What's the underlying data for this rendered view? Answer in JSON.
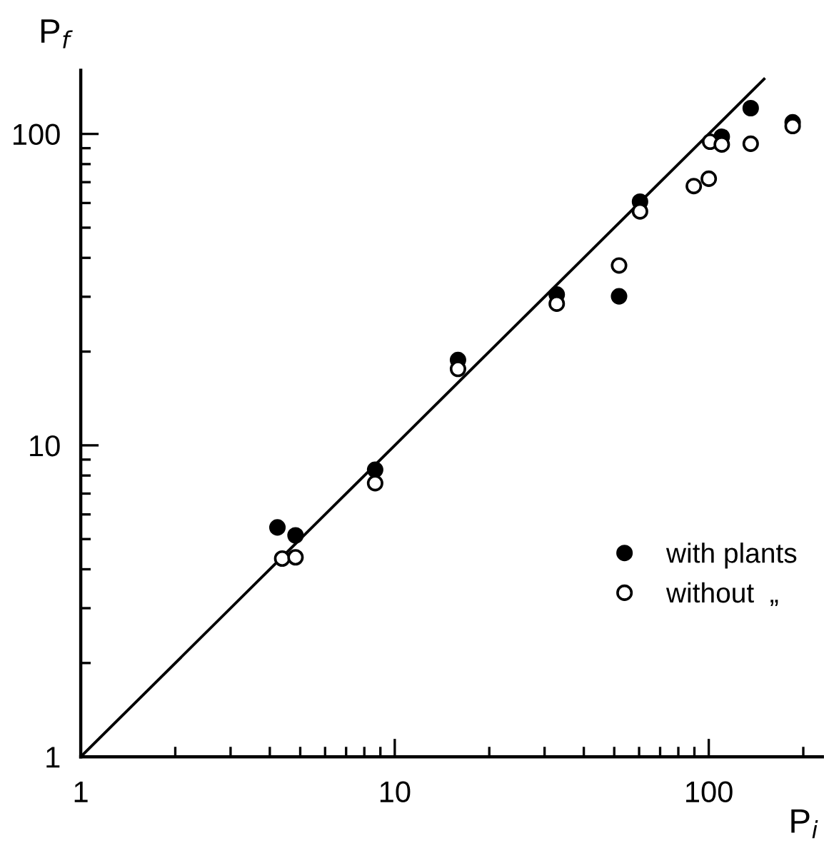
{
  "chart_data": {
    "type": "scatter",
    "xlabel": "P$_{i}$",
    "ylabel": "P$_{f}$",
    "log": "xy",
    "xlim": [
      1,
      230
    ],
    "ylim": [
      1,
      160
    ],
    "xticks": [
      1,
      10,
      100
    ],
    "yticks": [
      1,
      10,
      100
    ],
    "grid": false,
    "legend": "bottom right",
    "marker": "circle",
    "series": [
      {
        "name": "with plants",
        "color": "#000000",
        "x": [
          4.23,
          4.83,
          8.66,
          15.9,
          32.8,
          51.8,
          60.4,
          110,
          136,
          185
        ],
        "values": [
          5.45,
          5.14,
          8.35,
          18.8,
          30.5,
          30.1,
          60.6,
          98,
          121,
          109
        ]
      },
      {
        "name": "without  „",
        "color": "#000000",
        "x": [
          4.38,
          4.83,
          8.66,
          15.9,
          32.8,
          51.8,
          60.4,
          89.6,
          100,
          101,
          110,
          136,
          185
        ],
        "values": [
          4.33,
          4.37,
          7.56,
          17.6,
          28.5,
          37.8,
          56.4,
          68,
          71.8,
          94.4,
          92.5,
          93,
          106
        ]
      },
      {
        "type": "line",
        "marker": "none",
        "color": "#000000",
        "x": [
          1,
          150
        ],
        "values": [
          1,
          150
        ]
      }
    ]
  }
}
